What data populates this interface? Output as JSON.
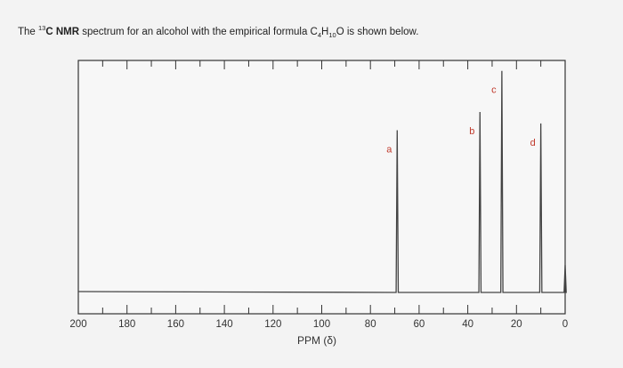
{
  "question": {
    "pre": "The ",
    "isotope_sup": "13",
    "isotope_c": "C",
    "nmr_bold": " NMR",
    "mid": " spectrum for an alcohol with the empirical formula C",
    "sub_c": "4",
    "h": "H",
    "sub_h": "10",
    "o_tail": "O is shown below."
  },
  "chart_data": {
    "type": "line",
    "title": "",
    "xlabel": "PPM (δ)",
    "ylabel": "",
    "xlim": [
      200,
      0
    ],
    "x_reversed": true,
    "x_ticks": [
      200,
      180,
      160,
      140,
      120,
      100,
      80,
      60,
      40,
      20,
      0
    ],
    "grid": false,
    "peaks": [
      {
        "label": "a",
        "ppm": 69,
        "relative_height": 0.71
      },
      {
        "label": "b",
        "ppm": 35,
        "relative_height": 0.79
      },
      {
        "label": "c",
        "ppm": 26,
        "relative_height": 0.97
      },
      {
        "label": "d",
        "ppm": 10,
        "relative_height": 0.74
      },
      {
        "label": "",
        "ppm": 0,
        "relative_height": 0.12
      }
    ],
    "baseline_level": 0,
    "colors": {
      "spectrum": "#444444",
      "peak_label": "#c0392b",
      "frame": "#333333"
    }
  }
}
